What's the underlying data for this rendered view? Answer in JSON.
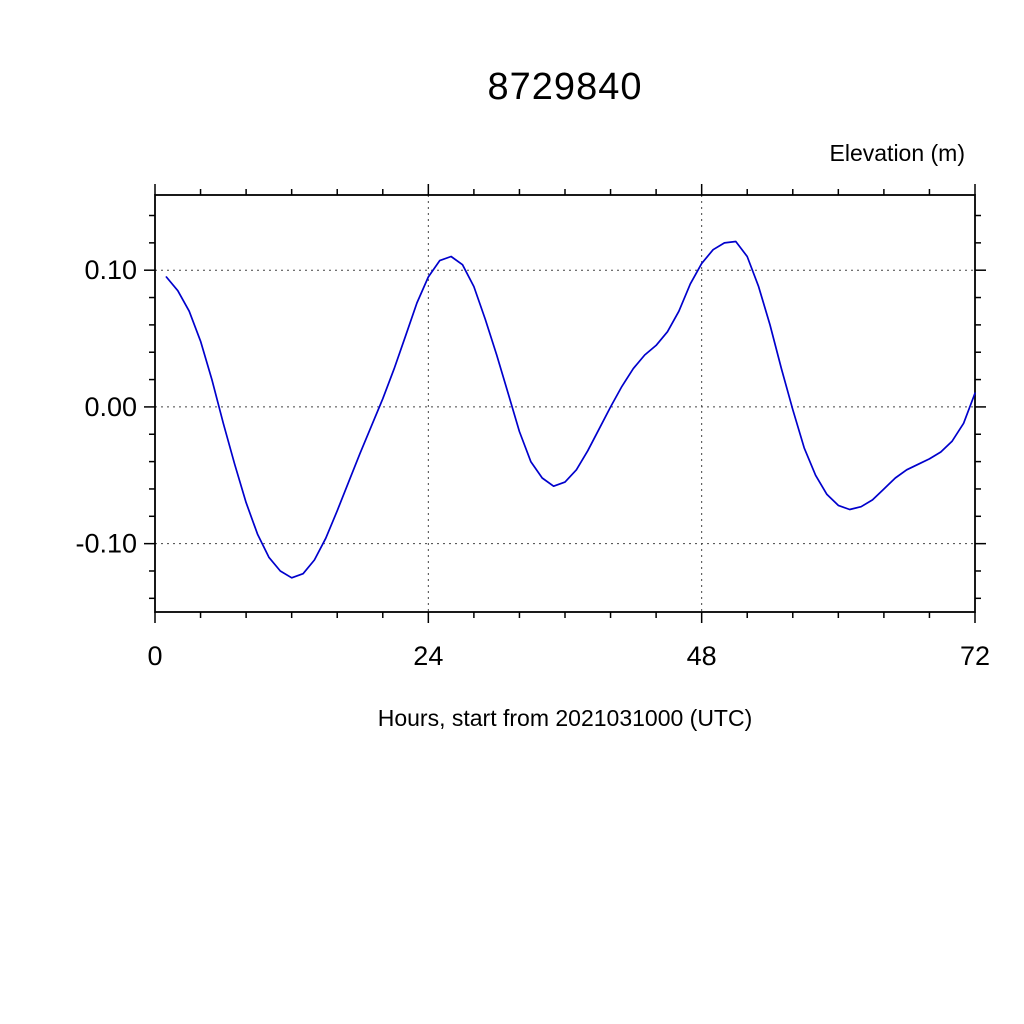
{
  "page": {
    "background": "#ffffff"
  },
  "chart_data": {
    "type": "line",
    "title": "8729840",
    "ylabel": "Elevation (m)",
    "xlabel": "Hours, start from 2021031000 (UTC)",
    "xlim": [
      0,
      72
    ],
    "ylim": [
      -0.15,
      0.155
    ],
    "x_ticks": [
      0,
      24,
      48,
      72
    ],
    "x_tick_labels": [
      "0",
      "24",
      "48",
      "72"
    ],
    "x_minor_step": 4,
    "y_ticks": [
      -0.1,
      0.0,
      0.1
    ],
    "y_tick_labels": [
      "-0.10",
      "0.00",
      "0.10"
    ],
    "y_minor_step": 0.02,
    "grid": "dashed lines at major ticks, vertical at x=24 and x=48, horizontal at y=-0.10, 0.00, 0.10",
    "legend": "none",
    "line_color": "#0000cc",
    "axis_color": "#000000",
    "grid_color": "#444444",
    "series": [
      {
        "name": "elevation",
        "x": [
          1,
          2,
          3,
          4,
          5,
          6,
          7,
          8,
          9,
          10,
          11,
          12,
          13,
          14,
          15,
          16,
          17,
          18,
          19,
          20,
          21,
          22,
          23,
          24,
          25,
          26,
          27,
          28,
          29,
          30,
          31,
          32,
          33,
          34,
          35,
          36,
          37,
          38,
          39,
          40,
          41,
          42,
          43,
          44,
          45,
          46,
          47,
          48,
          49,
          50,
          51,
          52,
          53,
          54,
          55,
          56,
          57,
          58,
          59,
          60,
          61,
          62,
          63,
          64,
          65,
          66,
          67,
          68,
          69,
          70,
          71,
          72
        ],
        "y": [
          0.095,
          0.085,
          0.07,
          0.048,
          0.02,
          -0.012,
          -0.042,
          -0.07,
          -0.093,
          -0.11,
          -0.12,
          -0.125,
          -0.122,
          -0.112,
          -0.096,
          -0.076,
          -0.055,
          -0.034,
          -0.014,
          0.006,
          0.028,
          0.052,
          0.076,
          0.095,
          0.107,
          0.11,
          0.104,
          0.088,
          0.064,
          0.038,
          0.01,
          -0.018,
          -0.04,
          -0.052,
          -0.058,
          -0.055,
          -0.046,
          -0.032,
          -0.016,
          0.0,
          0.015,
          0.028,
          0.038,
          0.045,
          0.055,
          0.07,
          0.09,
          0.105,
          0.115,
          0.12,
          0.121,
          0.11,
          0.088,
          0.06,
          0.028,
          -0.002,
          -0.03,
          -0.05,
          -0.064,
          -0.072,
          -0.075,
          -0.073,
          -0.068,
          -0.06,
          -0.052,
          -0.046,
          -0.042,
          -0.038,
          -0.033,
          -0.025,
          -0.012,
          0.01
        ]
      }
    ]
  }
}
